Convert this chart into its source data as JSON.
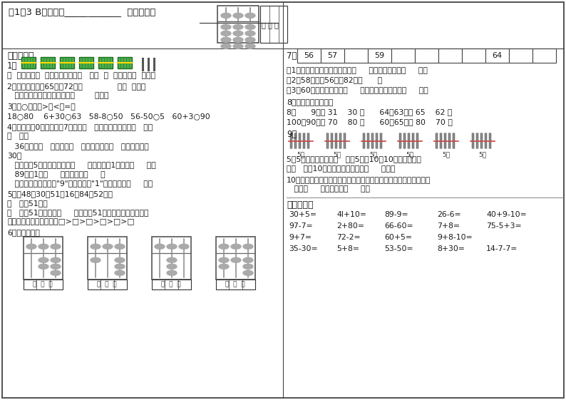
{
  "background": "#ffffff",
  "text_color": "#1a1a1a",
  "border_color": "#333333",
  "q7_cells": [
    "56",
    "57",
    "",
    "59",
    "",
    "",
    "",
    "",
    "64",
    "",
    ""
  ]
}
